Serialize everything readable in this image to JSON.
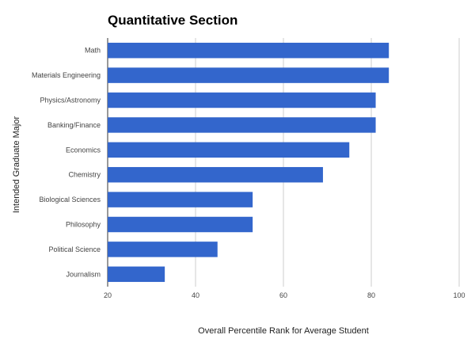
{
  "chart_data": {
    "type": "bar",
    "orientation": "horizontal",
    "title": "Quantitative Section",
    "xlabel": "Overall Percentile Rank for Average Student",
    "ylabel": "Intended Graduate Major",
    "categories": [
      "Math",
      "Materials Engineering",
      "Physics/Astronomy",
      "Banking/Finance",
      "Economics",
      "Chemistry",
      "Biological Sciences",
      "Philosophy",
      "Political Science",
      "Journalism"
    ],
    "values": [
      84,
      84,
      81,
      81,
      75,
      69,
      53,
      53,
      45,
      33
    ],
    "xlim": [
      20,
      100
    ],
    "xticks": [
      20,
      40,
      60,
      80,
      100
    ],
    "grid": true,
    "bar_color": "#3366cc",
    "grid_color": "#cccccc"
  }
}
